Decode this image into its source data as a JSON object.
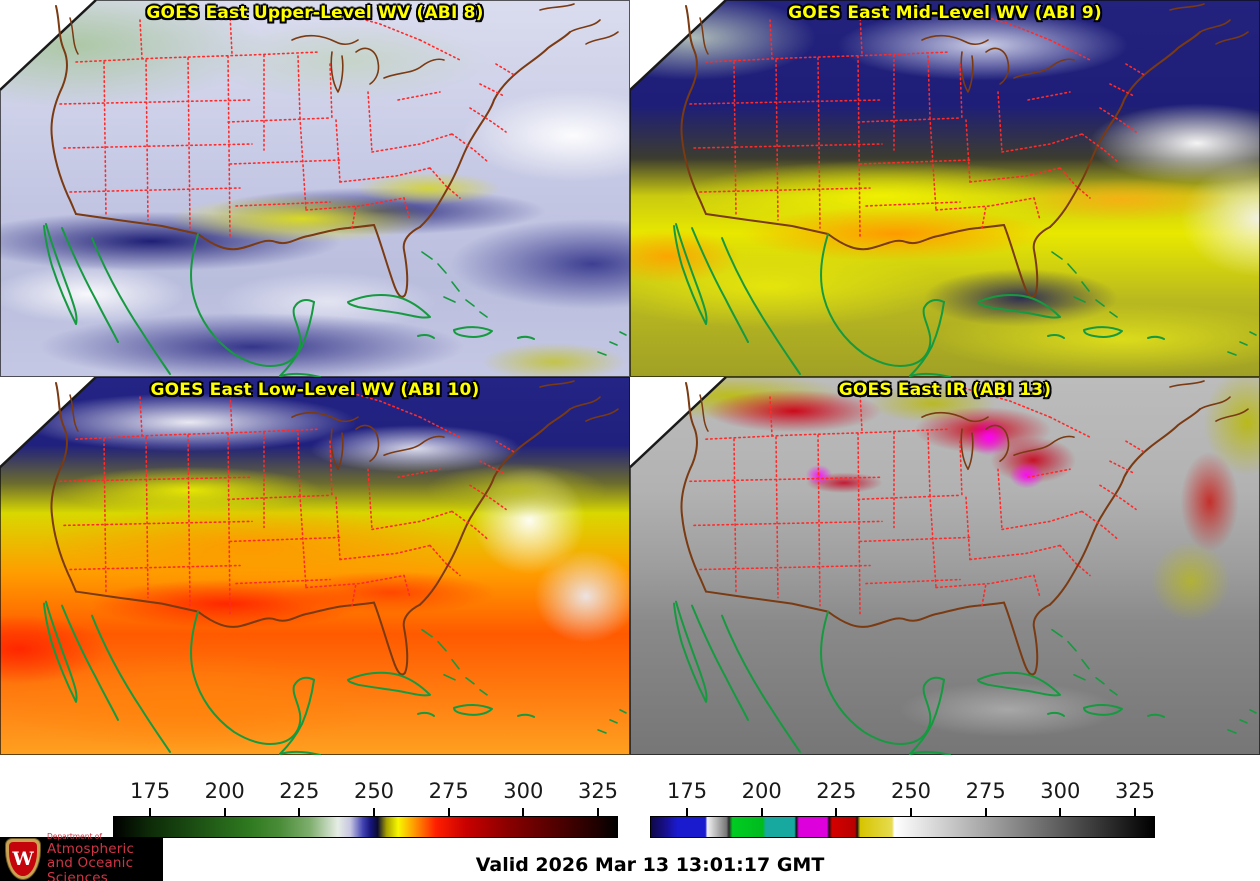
{
  "panels": [
    {
      "id": "abi8",
      "title": "GOES East Upper-Level WV (ABI 8)"
    },
    {
      "id": "abi9",
      "title": "GOES East Mid-Level WV (ABI 9)"
    },
    {
      "id": "abi10",
      "title": "GOES East Low-Level WV (ABI 10)"
    },
    {
      "id": "abi13",
      "title": "GOES East IR (ABI 13)"
    }
  ],
  "colorbars": {
    "wv": {
      "name": "water-vapor-brightness-temperature-scale",
      "ticks": [
        "175",
        "200",
        "225",
        "250",
        "275",
        "300",
        "325"
      ]
    },
    "ir": {
      "name": "infrared-brightness-temperature-scale",
      "ticks": [
        "175",
        "200",
        "225",
        "250",
        "275",
        "300",
        "325"
      ]
    }
  },
  "footer": {
    "valid_text": "Valid 2026 Mar 13 13:01:17 GMT"
  },
  "logo": {
    "dept": "Department of",
    "line1": "Atmospheric",
    "line2": "and Oceanic Sciences",
    "crest_letter": "W"
  },
  "colors": {
    "title_text": "#ffff00",
    "state_borders": "#ff2a2a",
    "us_coast": "#7a3a12",
    "intl_coast": "#159a40",
    "logo_bg": "#000000",
    "logo_text": "#cf3545",
    "crest_red": "#c5050c",
    "crest_gold": "#c9a253",
    "timestamp_text": "#000000"
  }
}
